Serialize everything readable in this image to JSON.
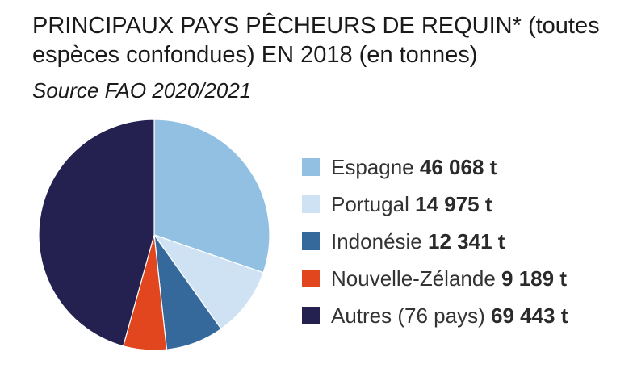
{
  "title": "PRINCIPAUX PAYS PÊCHEURS DE REQUIN* (toutes espèces confondues) EN 2018 (en tonnes)",
  "subtitle": "Source FAO 2020/2021",
  "chart_data": {
    "type": "pie",
    "title": "PRINCIPAUX PAYS PÊCHEURS DE REQUIN* (toutes espèces confondues) EN 2018 (en tonnes)",
    "subtitle": "Source FAO 2020/2021",
    "unit": "t",
    "legend_placement": "right",
    "slices": [
      {
        "label": "Espagne",
        "value": 46068,
        "value_label": "46 068 t",
        "color": "#92c0e3"
      },
      {
        "label": "Portugal",
        "value": 14975,
        "value_label": "14 975 t",
        "color": "#cfe2f4"
      },
      {
        "label": "Indonésie",
        "value": 12341,
        "value_label": "12 341 t",
        "color": "#35699c"
      },
      {
        "label": "Nouvelle-Zélande",
        "value": 9189,
        "value_label": "9 189 t",
        "color": "#e1461f"
      },
      {
        "label": "Autres (76 pays)",
        "value": 69443,
        "value_label": "69 443 t",
        "color": "#242050"
      }
    ]
  }
}
